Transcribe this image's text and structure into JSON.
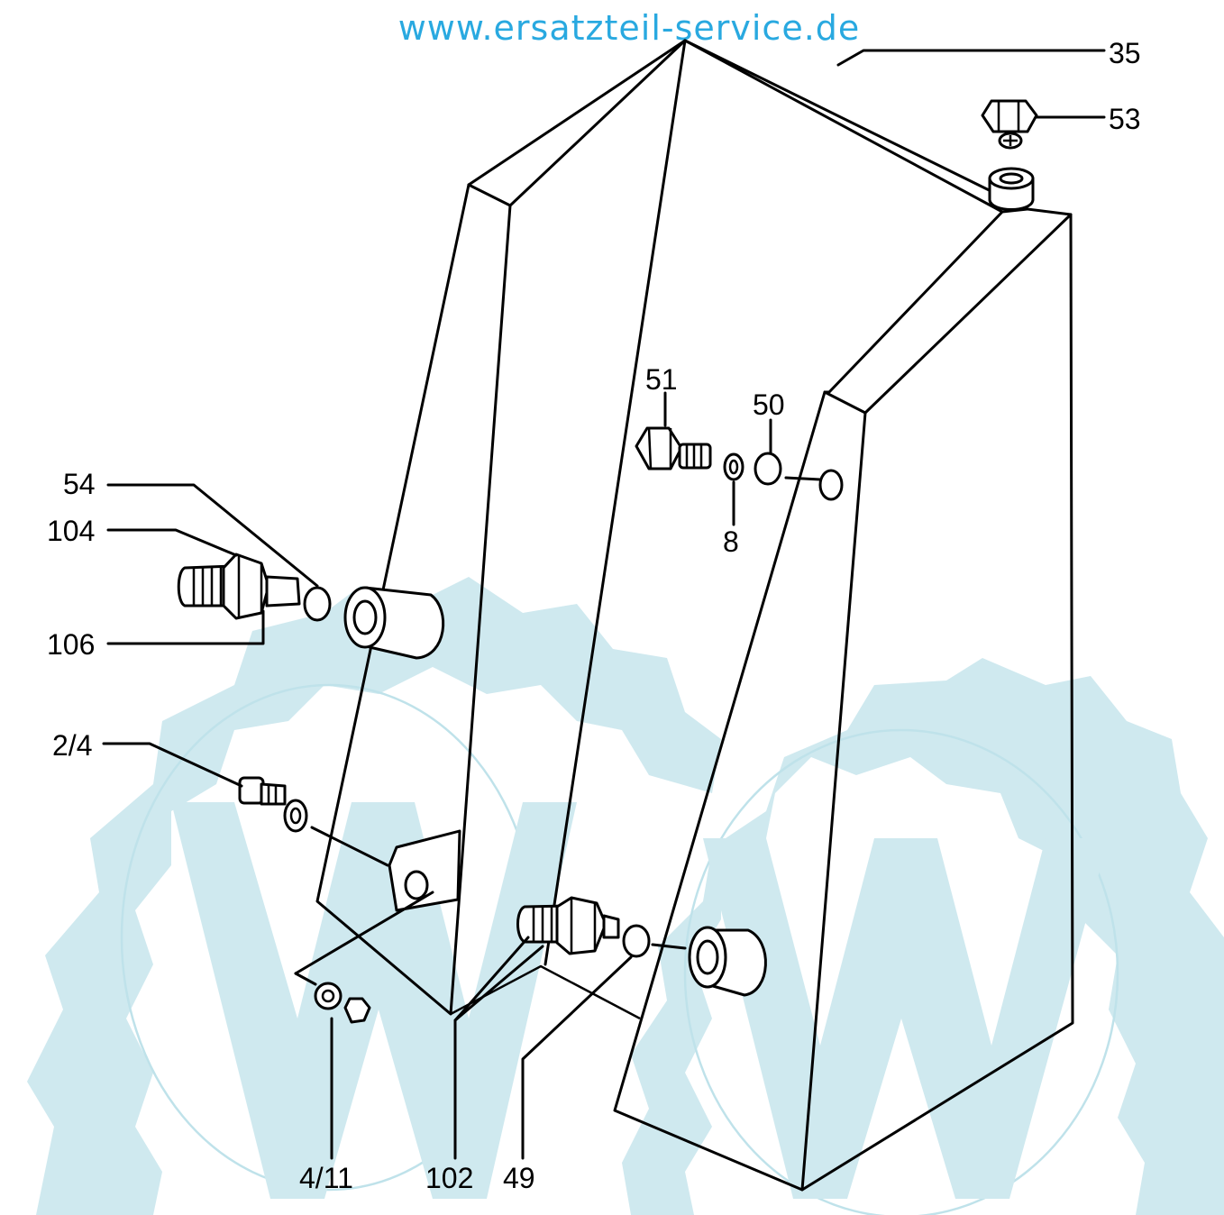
{
  "watermark": {
    "url": "www.ersatzteil-service.de",
    "url_color": "#29a9e0",
    "logo_color": "#cfe9ef"
  },
  "callouts": {
    "c35": "35",
    "c53": "53",
    "c51": "51",
    "c50": "50",
    "c8": "8",
    "c54": "54",
    "c104": "104",
    "c106": "106",
    "c2_4": "2/4",
    "c4_11": "4/11",
    "c102": "102",
    "c49": "49"
  }
}
